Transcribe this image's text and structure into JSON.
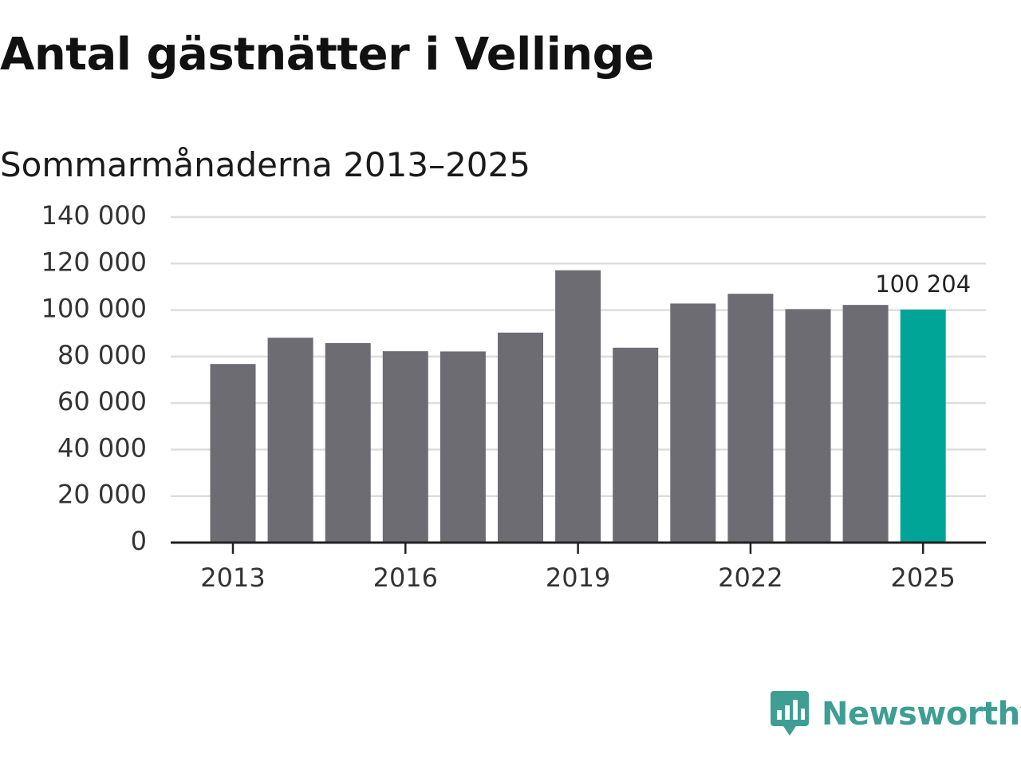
{
  "title": "Antal gästnätter i Vellinge",
  "subtitle": "Sommarmånaderna 2013–2025",
  "brand": {
    "name": "Newsworthy",
    "color": "#3e9e93"
  },
  "colors": {
    "bar": "#6d6c73",
    "highlight": "#00a598",
    "grid": "#dddddd",
    "axis": "#222222"
  },
  "chart_data": {
    "type": "bar",
    "title": "Antal gästnätter i Vellinge",
    "subtitle": "Sommarmånaderna 2013–2025",
    "xlabel": "",
    "ylabel": "",
    "categories": [
      "2013",
      "2014",
      "2015",
      "2016",
      "2017",
      "2018",
      "2019",
      "2020",
      "2021",
      "2022",
      "2023",
      "2024",
      "2025"
    ],
    "values": [
      76800,
      88100,
      85800,
      82300,
      82200,
      90300,
      117100,
      83800,
      102800,
      107000,
      100400,
      102200,
      100204
    ],
    "highlight_index": 12,
    "annotation": {
      "category": "2025",
      "text": "100 204"
    },
    "ylim": [
      0,
      140000
    ],
    "yticks": [
      0,
      20000,
      40000,
      60000,
      80000,
      100000,
      120000,
      140000
    ],
    "ytick_labels": [
      "0",
      "20 000",
      "40 000",
      "60 000",
      "80 000",
      "100 000",
      "120 000",
      "140 000"
    ],
    "xtick_labels": [
      "2013",
      "2016",
      "2019",
      "2022",
      "2025"
    ],
    "grid": true,
    "legend": "none"
  }
}
